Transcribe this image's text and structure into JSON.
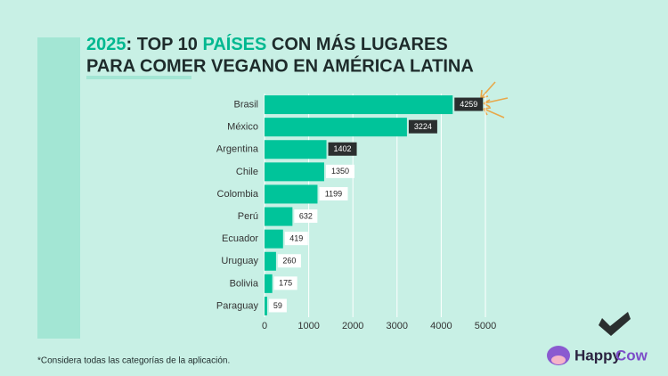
{
  "chart_data": {
    "type": "bar",
    "title_parts": [
      {
        "text": "2025",
        "color": "#00b890"
      },
      {
        "text": ": TOP 10 ",
        "color": "#1e2b2b"
      },
      {
        "text": "PAÍSES",
        "color": "#00b890"
      },
      {
        "text": " CON MÁS LUGARES",
        "color": "#1e2b2b"
      }
    ],
    "title_line2": "PARA COMER VEGANO EN AMÉRICA LATINA",
    "categories": [
      "Brasil",
      "México",
      "Argentina",
      "Chile",
      "Colombia",
      "Perú",
      "Ecuador",
      "Uruguay",
      "Bolivia",
      "Paraguay"
    ],
    "values": [
      4259,
      3224,
      1402,
      1350,
      1199,
      632,
      419,
      260,
      175,
      59
    ],
    "color": "#00c49a",
    "value_label_fills": [
      "#2b2f2f",
      "#2b2f2f",
      "#2b2f2f",
      "#ffffff",
      "#ffffff",
      "#ffffff",
      "#ffffff",
      "#ffffff",
      "#ffffff",
      "#ffffff"
    ],
    "xlim": [
      0,
      5000
    ],
    "xticks": [
      0,
      1000,
      2000,
      3000,
      4000,
      5000
    ],
    "grid": true,
    "footnote": "*Considera todas las categorías de la aplicación.",
    "logo": [
      "Happy",
      "Cow"
    ]
  }
}
